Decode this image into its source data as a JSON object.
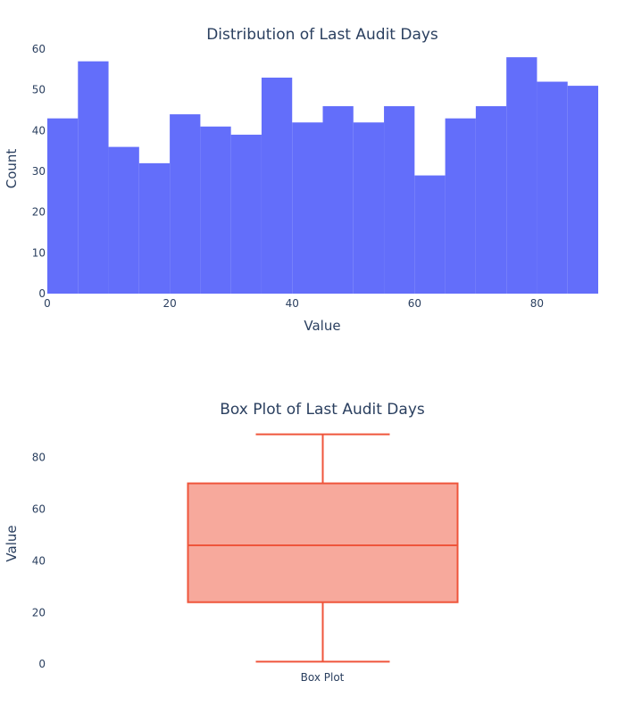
{
  "chart_data": [
    {
      "type": "bar",
      "subtype": "histogram",
      "title": "Distribution of Last Audit Days",
      "xlabel": "Value",
      "ylabel": "Count",
      "bin_edges": [
        0,
        5,
        10,
        15,
        20,
        25,
        30,
        35,
        40,
        45,
        50,
        55,
        60,
        65,
        70,
        75,
        80,
        85,
        90
      ],
      "values": [
        43,
        57,
        36,
        32,
        44,
        41,
        39,
        53,
        42,
        46,
        42,
        46,
        29,
        43,
        46,
        58,
        52,
        51
      ],
      "xlim": [
        0,
        90
      ],
      "ylim": [
        0,
        60
      ],
      "x_ticks": [
        0,
        20,
        40,
        60,
        80
      ],
      "y_ticks": [
        0,
        10,
        20,
        30,
        40,
        50,
        60
      ],
      "grid": false,
      "color": "#636efa"
    },
    {
      "type": "box",
      "title": "Box Plot of Last Audit Days",
      "ylabel": "Value",
      "categories": [
        "Box Plot"
      ],
      "min": 1,
      "q1": 24,
      "median": 46,
      "q3": 70,
      "max": 89,
      "ylim": [
        -2,
        93
      ],
      "y_ticks": [
        0,
        20,
        40,
        60,
        80
      ],
      "grid": false,
      "line_color": "#ef553b",
      "fill_color": "#f7a99c"
    }
  ]
}
